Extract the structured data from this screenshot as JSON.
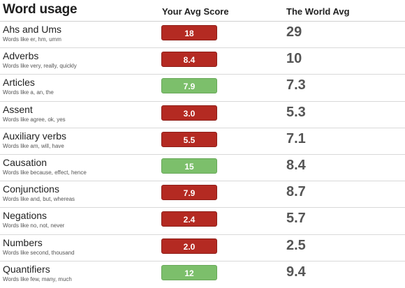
{
  "header": {
    "title": "Word usage",
    "your_avg": "Your Avg Score",
    "world_avg": "The World Avg"
  },
  "colors": {
    "below": "#b42a22",
    "above": "#7cbf6b"
  },
  "rows": [
    {
      "name": "Ahs and Ums",
      "examples": "Words like er, hm, umm",
      "score": "18",
      "status": "red",
      "world": "29"
    },
    {
      "name": "Adverbs",
      "examples": "Words like very, really, quickly",
      "score": "8.4",
      "status": "red",
      "world": "10"
    },
    {
      "name": "Articles",
      "examples": "Words like a, an, the",
      "score": "7.9",
      "status": "green",
      "world": "7.3"
    },
    {
      "name": "Assent",
      "examples": "Words like agree, ok, yes",
      "score": "3.0",
      "status": "red",
      "world": "5.3"
    },
    {
      "name": "Auxiliary verbs",
      "examples": "Words like am, will, have",
      "score": "5.5",
      "status": "red",
      "world": "7.1"
    },
    {
      "name": "Causation",
      "examples": "Words like because, effect, hence",
      "score": "15",
      "status": "green",
      "world": "8.4"
    },
    {
      "name": "Conjunctions",
      "examples": "Words like and, but, whereas",
      "score": "7.9",
      "status": "red",
      "world": "8.7"
    },
    {
      "name": "Negations",
      "examples": "Words like no, not, never",
      "score": "2.4",
      "status": "red",
      "world": "5.7"
    },
    {
      "name": "Numbers",
      "examples": "Words like second, thousand",
      "score": "2.0",
      "status": "red",
      "world": "2.5"
    },
    {
      "name": "Quantifiers",
      "examples": "Words like few, many, much",
      "score": "12",
      "status": "green",
      "world": "9.4"
    }
  ]
}
